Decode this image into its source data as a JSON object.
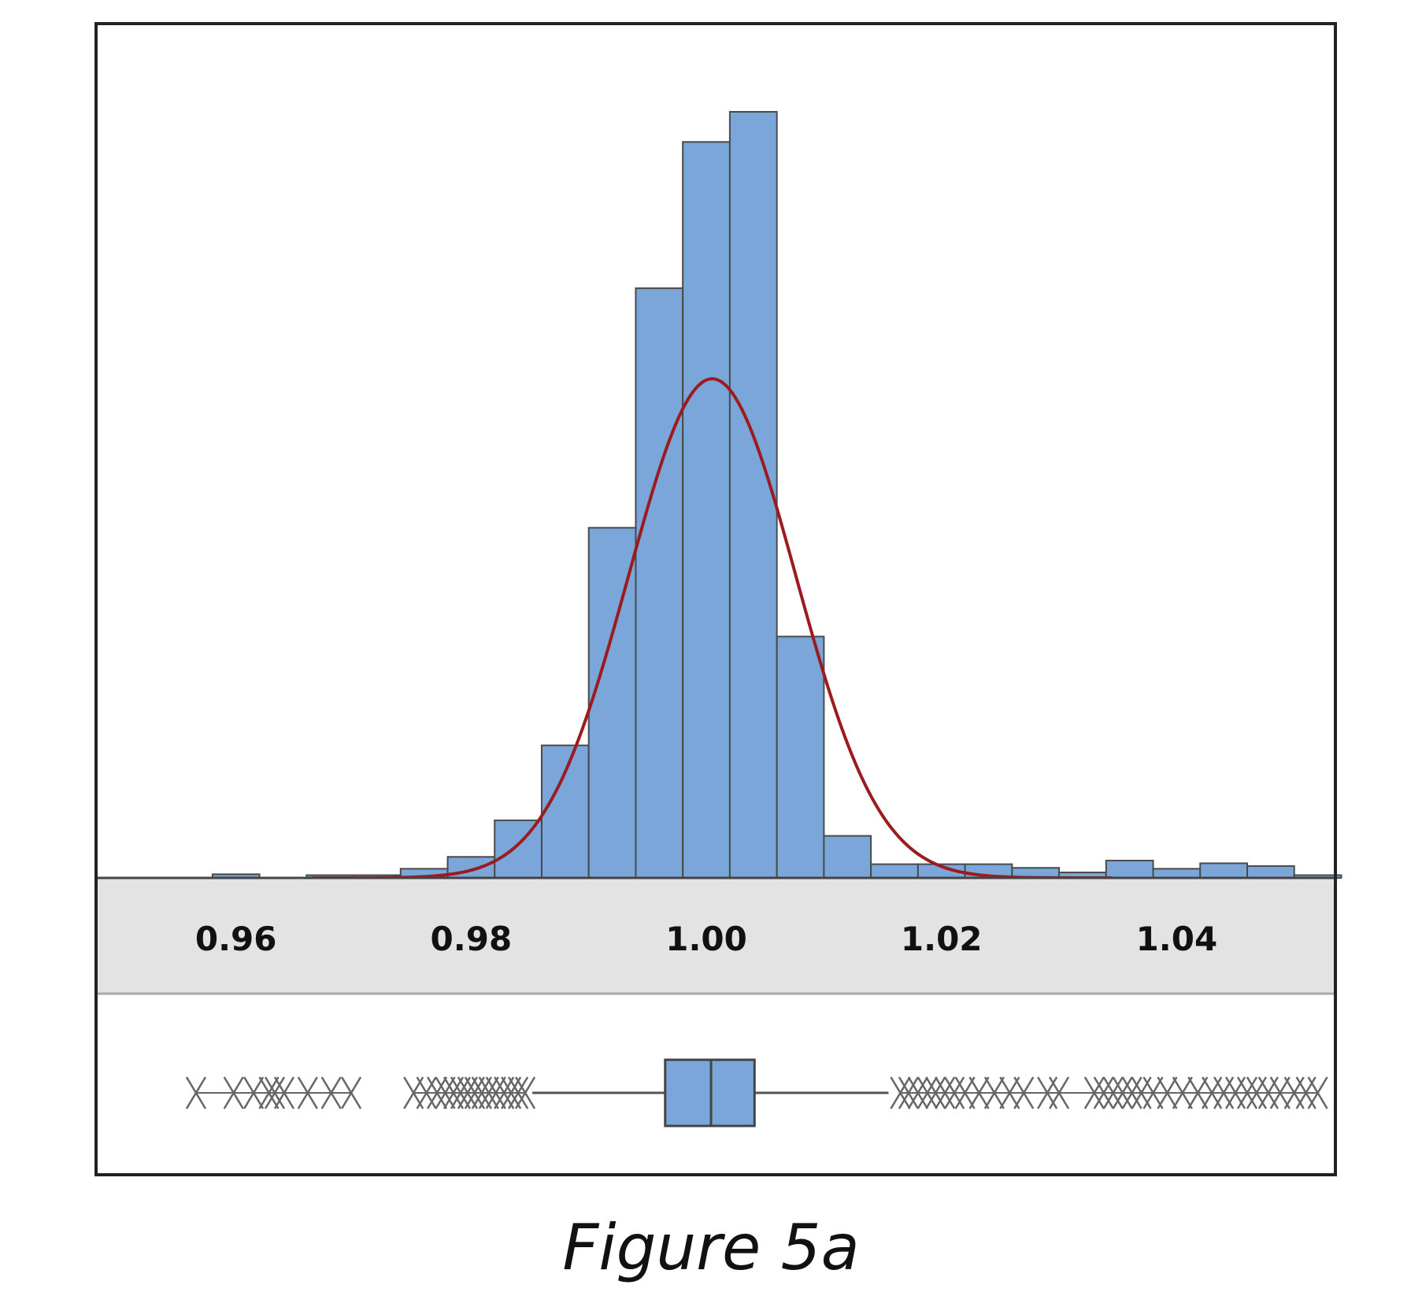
{
  "caption": "Figure 5a",
  "colors": {
    "bar_fill": "#7aa6da",
    "bar_stroke": "#4a4a4a",
    "curve": "#9b1b1f",
    "axis_band": "#e3e3e3",
    "outlier": "#666666",
    "frame": "#222222"
  },
  "chart_data": {
    "type": "histogram",
    "grid": false,
    "xlim": [
      0.9481,
      1.0535
    ],
    "x_ticks": [
      "0.96",
      "0.98",
      "1.00",
      "1.02",
      "1.04"
    ],
    "bins": [
      {
        "start": 0.958,
        "end": 0.962,
        "count": 0.4
      },
      {
        "start": 0.966,
        "end": 0.97,
        "count": 0.3
      },
      {
        "start": 0.97,
        "end": 0.974,
        "count": 0.3
      },
      {
        "start": 0.974,
        "end": 0.978,
        "count": 1
      },
      {
        "start": 0.978,
        "end": 0.982,
        "count": 2.3
      },
      {
        "start": 0.982,
        "end": 0.986,
        "count": 6.3
      },
      {
        "start": 0.986,
        "end": 0.99,
        "count": 14.5
      },
      {
        "start": 0.99,
        "end": 0.994,
        "count": 38.3
      },
      {
        "start": 0.994,
        "end": 0.998,
        "count": 64.5
      },
      {
        "start": 0.998,
        "end": 1.002,
        "count": 80.5
      },
      {
        "start": 1.002,
        "end": 1.006,
        "count": 83.8
      },
      {
        "start": 1.006,
        "end": 1.01,
        "count": 26.4
      },
      {
        "start": 1.01,
        "end": 1.014,
        "count": 4.6
      },
      {
        "start": 1.014,
        "end": 1.018,
        "count": 1.5
      },
      {
        "start": 1.018,
        "end": 1.022,
        "count": 1.5
      },
      {
        "start": 1.022,
        "end": 1.026,
        "count": 1.5
      },
      {
        "start": 1.026,
        "end": 1.03,
        "count": 1.1
      },
      {
        "start": 1.03,
        "end": 1.034,
        "count": 0.6
      },
      {
        "start": 1.034,
        "end": 1.038,
        "count": 1.9
      },
      {
        "start": 1.038,
        "end": 1.042,
        "count": 1
      },
      {
        "start": 1.042,
        "end": 1.046,
        "count": 1.6
      },
      {
        "start": 1.046,
        "end": 1.05,
        "count": 1.3
      },
      {
        "start": 1.05,
        "end": 1.054,
        "count": 0.3
      }
    ],
    "ylim": [
      0,
      90
    ],
    "normal_fit": {
      "mean": 1.0005,
      "sd": 0.0071,
      "peak": 54.6,
      "x_range": [
        0.9665,
        1.0345
      ]
    },
    "boxplot": {
      "q1": 0.9965,
      "median": 1.0004,
      "q3": 1.0041,
      "whisker_low": 0.9852,
      "whisker_high": 1.0155,
      "outliers": [
        0.9566,
        0.9598,
        0.9615,
        0.9628,
        0.9633,
        0.9641,
        0.9661,
        0.9681,
        0.9698,
        0.9751,
        0.9762,
        0.9771,
        0.9778,
        0.9785,
        0.9791,
        0.9797,
        0.9803,
        0.9809,
        0.9815,
        0.9821,
        0.9828,
        0.9834,
        0.984,
        0.9846,
        1.0165,
        1.0172,
        1.018,
        1.0188,
        1.0195,
        1.0203,
        1.0211,
        1.022,
        1.0232,
        1.0245,
        1.0258,
        1.027,
        1.029,
        1.03,
        1.033,
        1.0338,
        1.0346,
        1.0354,
        1.0362,
        1.037,
        1.038,
        1.0392,
        1.0405,
        1.0418,
        1.043,
        1.044,
        1.045,
        1.046,
        1.0468,
        1.0478,
        1.0488,
        1.05,
        1.051,
        1.052
      ]
    }
  }
}
